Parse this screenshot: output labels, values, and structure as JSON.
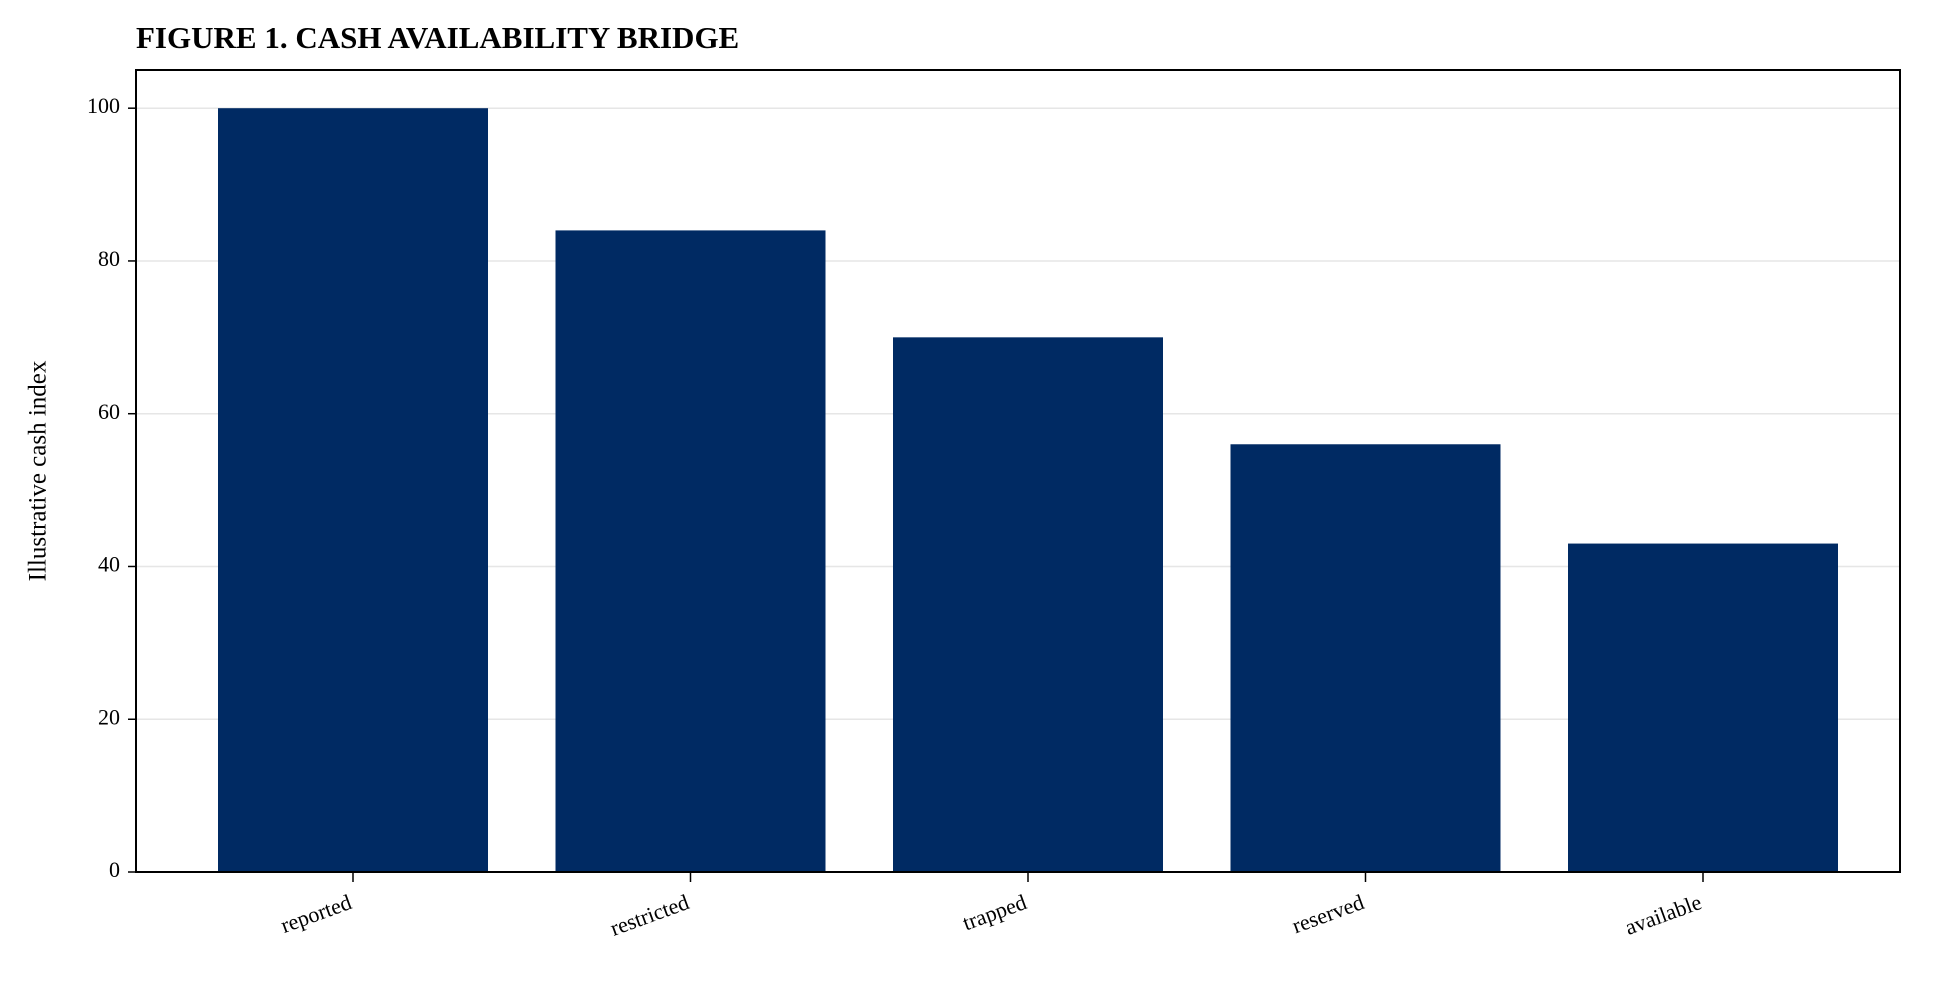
{
  "chart_data": {
    "type": "bar",
    "title": "FIGURE 1. CASH AVAILABILITY BRIDGE",
    "xlabel": "",
    "ylabel": "Illustrative cash index",
    "categories": [
      "reported",
      "restricted",
      "trapped",
      "reserved",
      "available"
    ],
    "values": [
      100,
      84,
      70,
      56,
      43
    ],
    "ylim": [
      0,
      105
    ],
    "yticks": [
      0,
      20,
      40,
      60,
      80,
      100
    ],
    "grid": "horizontal",
    "legend": "none",
    "bar_color": "#002a63"
  }
}
